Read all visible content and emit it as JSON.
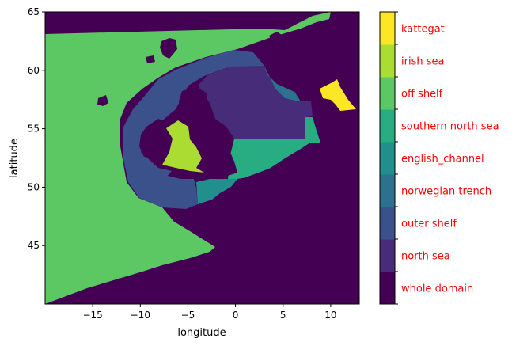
{
  "map": {
    "xlabel": "longitude",
    "ylabel": "latitude",
    "xlim": [
      -20,
      13
    ],
    "ylim": [
      40,
      65
    ],
    "x_ticks": [
      {
        "value": -15,
        "label": "−15"
      },
      {
        "value": -10,
        "label": "−10"
      },
      {
        "value": -5,
        "label": "−5"
      },
      {
        "value": 0,
        "label": "0"
      },
      {
        "value": 5,
        "label": "5"
      },
      {
        "value": 10,
        "label": "10"
      }
    ],
    "y_ticks": [
      {
        "value": 45,
        "label": "45"
      },
      {
        "value": 50,
        "label": "50"
      },
      {
        "value": 55,
        "label": "55"
      },
      {
        "value": 60,
        "label": "60"
      },
      {
        "value": 65,
        "label": "65"
      }
    ]
  },
  "legend": {
    "label_color": "#ff0000",
    "categories": [
      {
        "label": "whole domain",
        "color": "#440154"
      },
      {
        "label": "north sea",
        "color": "#472c7a"
      },
      {
        "label": "outer shelf",
        "color": "#3b518b"
      },
      {
        "label": "norwegian trench",
        "color": "#2c718e"
      },
      {
        "label": "english_channel",
        "color": "#21908d"
      },
      {
        "label": "southern north sea",
        "color": "#27ad81"
      },
      {
        "label": "off shelf",
        "color": "#5cc863"
      },
      {
        "label": "irish sea",
        "color": "#aadc32"
      },
      {
        "label": "kattegat",
        "color": "#fde725"
      }
    ]
  }
}
